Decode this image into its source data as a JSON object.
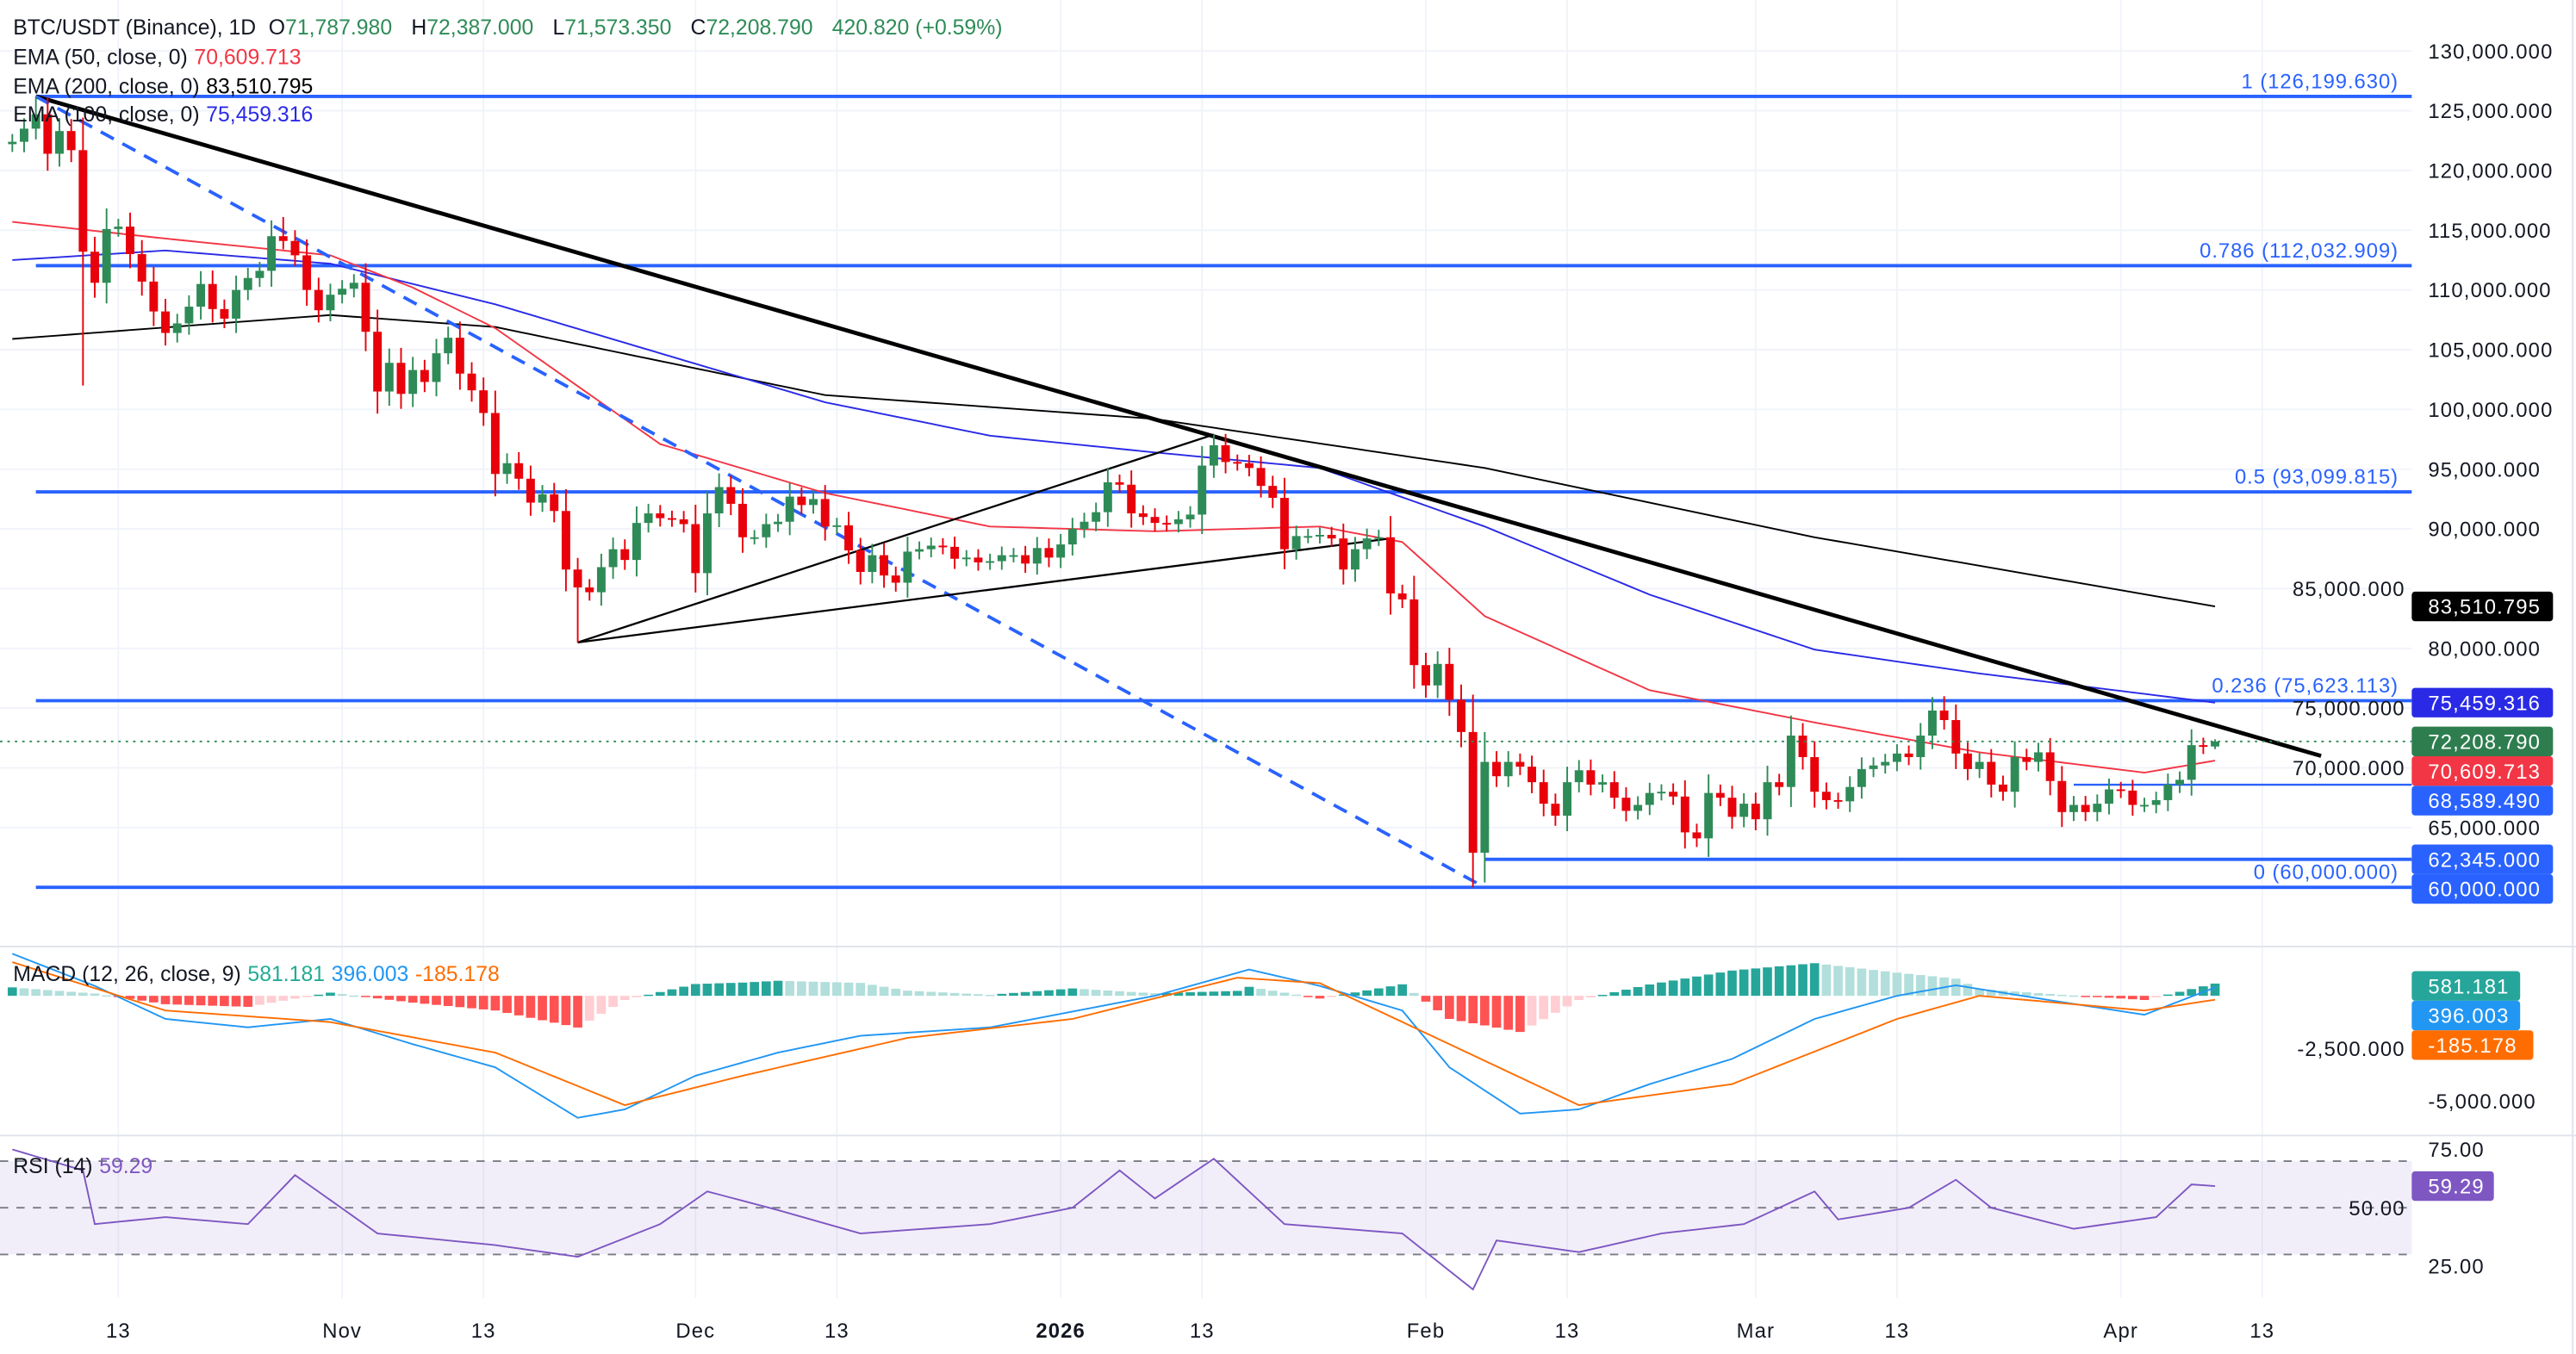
{
  "legend": {
    "symbol": "BTC/USDT (Binance), 1D",
    "open_label": "O",
    "open": "71,787.980",
    "high_label": "H",
    "high": "72,387.000",
    "low_label": "L",
    "low": "71,573.350",
    "close_label": "C",
    "close": "72,208.790",
    "change": "420.820 (+0.59%)",
    "ema50_label": "EMA (50, close, 0)",
    "ema50_value": "70,609.713",
    "ema200_label": "EMA (200, close, 0)",
    "ema200_value": "83,510.795",
    "ema100_label": "EMA (100, close, 0)",
    "ema100_value": "75,459.316",
    "macd_label": "MACD (12, 26, close, 9)",
    "macd_hist": "581.181",
    "macd_value": "396.003",
    "macd_signal": "-185.178",
    "rsi_label": "RSI (14)",
    "rsi_value": "59.29"
  },
  "colors": {
    "up": "#2e8b57",
    "down": "#e8000b",
    "ema50": "#f23645",
    "ema100": "#2a2ae6",
    "ema200": "#000000",
    "fib": "#2962ff",
    "macd": "#2196f3",
    "signal": "#ff6d00",
    "hist_up": "#26a69a",
    "hist_up_light": "#b2dfdb",
    "hist_down": "#ff5252",
    "hist_down_light": "#ffcdd2",
    "rsi": "#7e57c2"
  },
  "chart_data": {
    "type": "candlestick",
    "start_date": "2025-10-04",
    "first_open": 122200,
    "last_open": 71787.98,
    "last_high": 72387.0,
    "last_low": 71573.35,
    "closes": [
      122400,
      123500,
      124700,
      121400,
      123300,
      121700,
      113200,
      110600,
      115100,
      115300,
      113000,
      110700,
      108200,
      106400,
      107200,
      108600,
      110500,
      108400,
      107600,
      110000,
      111000,
      111600,
      114500,
      114100,
      112900,
      110000,
      108300,
      109600,
      110100,
      110600,
      106500,
      101500,
      103900,
      101300,
      103300,
      102300,
      104700,
      106000,
      103000,
      101600,
      99700,
      94600,
      95500,
      94200,
      92200,
      92900,
      91500,
      86600,
      85100,
      84700,
      86800,
      88300,
      87400,
      90500,
      91300,
      90900,
      90800,
      90400,
      86300,
      91300,
      93500,
      92100,
      89300,
      89300,
      90400,
      90600,
      92700,
      92000,
      92500,
      90200,
      90300,
      88200,
      86400,
      87800,
      86100,
      85500,
      88100,
      88300,
      88600,
      88500,
      87500,
      87600,
      87200,
      87300,
      87800,
      87800,
      87100,
      88400,
      87600,
      88700,
      90000,
      90600,
      91400,
      93900,
      93700,
      91300,
      91000,
      90500,
      90400,
      90800,
      91200,
      95300,
      97000,
      95600,
      95500,
      95100,
      93600,
      92600,
      88300,
      89400,
      89400,
      89500,
      89200,
      86600,
      88300,
      89200,
      89300,
      84600,
      84100,
      78600,
      76900,
      78700,
      75700,
      73000,
      62900,
      70500,
      69300,
      70500,
      70100,
      68800,
      67000,
      66000,
      68800,
      69800,
      68600,
      68800,
      67500,
      66400,
      66900,
      67900,
      68000,
      67600,
      64600,
      64100,
      67900,
      67500,
      65900,
      67000,
      65700,
      68800,
      68400,
      72700,
      70900,
      68000,
      67300,
      67200,
      68400,
      69900,
      70200,
      70500,
      71200,
      70900,
      72700,
      74800,
      74000,
      71200,
      69900,
      70500,
      68600,
      68000,
      70900,
      70500,
      71300,
      68900,
      66300,
      66900,
      66300,
      67000,
      68200,
      68100,
      66900,
      66900,
      67300,
      68600,
      69000,
      71900,
      71788,
      72208.79
    ],
    "wick_overrides": [
      {
        "date": "2025-10-06",
        "high": 126199.63
      },
      {
        "date": "2025-10-10",
        "low": 102000
      },
      {
        "date": "2025-10-27",
        "high": 116100
      },
      {
        "date": "2025-11-21",
        "low": 80500
      },
      {
        "date": "2026-01-14",
        "high": 97900
      },
      {
        "date": "2026-02-05",
        "low": 60000
      },
      {
        "date": "2026-03-17",
        "high": 76000
      }
    ],
    "ema50": [
      [
        "2025-10-04",
        115700
      ],
      [
        "2025-10-17",
        114300
      ],
      [
        "2025-10-31",
        112900
      ],
      [
        "2025-11-07",
        110200
      ],
      [
        "2025-11-14",
        106800
      ],
      [
        "2025-11-28",
        97100
      ],
      [
        "2025-12-12",
        93000
      ],
      [
        "2025-12-26",
        90200
      ],
      [
        "2026-01-09",
        89800
      ],
      [
        "2026-01-23",
        90200
      ],
      [
        "2026-01-30",
        88900
      ],
      [
        "2026-02-06",
        82700
      ],
      [
        "2026-02-20",
        76500
      ],
      [
        "2026-03-06",
        73800
      ],
      [
        "2026-03-20",
        71300
      ],
      [
        "2026-04-03",
        69600
      ],
      [
        "2026-04-09",
        70609.713
      ]
    ],
    "ema100": [
      [
        "2025-10-04",
        112500
      ],
      [
        "2025-10-17",
        113300
      ],
      [
        "2025-10-31",
        112200
      ],
      [
        "2025-11-14",
        108800
      ],
      [
        "2025-11-28",
        104700
      ],
      [
        "2025-12-12",
        100600
      ],
      [
        "2025-12-26",
        97800
      ],
      [
        "2026-01-09",
        96400
      ],
      [
        "2026-01-23",
        95100
      ],
      [
        "2026-02-06",
        90200
      ],
      [
        "2026-02-20",
        84500
      ],
      [
        "2026-03-06",
        79900
      ],
      [
        "2026-03-20",
        77900
      ],
      [
        "2026-04-09",
        75459.316
      ]
    ],
    "ema200": [
      [
        "2025-10-04",
        105900
      ],
      [
        "2025-10-31",
        107900
      ],
      [
        "2025-11-14",
        106900
      ],
      [
        "2025-12-12",
        101200
      ],
      [
        "2026-01-09",
        99200
      ],
      [
        "2026-02-06",
        95100
      ],
      [
        "2026-03-06",
        89300
      ],
      [
        "2026-04-09",
        83510.795
      ]
    ],
    "y_ticks": [
      130000,
      125000,
      120000,
      115000,
      110000,
      105000,
      100000,
      95000,
      90000,
      85000,
      80000,
      75000,
      70000,
      65000
    ],
    "y_tick_labels": [
      "130,000.000",
      "125,000.000",
      "120,000.000",
      "115,000.000",
      "110,000.000",
      "105,000.000",
      "100,000.000",
      "95,000.000",
      "90,000.000",
      "85,000.000",
      "80,000.000",
      "75,000.000",
      "70,000.000",
      "65,000.000"
    ],
    "x_ticks": [
      {
        "date": "2025-10-13",
        "label": "13"
      },
      {
        "date": "2025-11-01",
        "label": "Nov"
      },
      {
        "date": "2025-11-13",
        "label": "13"
      },
      {
        "date": "2025-12-01",
        "label": "Dec"
      },
      {
        "date": "2025-12-13",
        "label": "13"
      },
      {
        "date": "2026-01-01",
        "label": "2026",
        "bold": true
      },
      {
        "date": "2026-01-13",
        "label": "13"
      },
      {
        "date": "2026-02-01",
        "label": "Feb"
      },
      {
        "date": "2026-02-13",
        "label": "13"
      },
      {
        "date": "2026-03-01",
        "label": "Mar"
      },
      {
        "date": "2026-03-13",
        "label": "13"
      },
      {
        "date": "2026-04-01",
        "label": "Apr"
      },
      {
        "date": "2026-04-13",
        "label": "13"
      }
    ],
    "fib_levels": [
      {
        "ratio": "1",
        "price": 126199.63,
        "label": "1 (126,199.630)"
      },
      {
        "ratio": "0.786",
        "price": 112032.909,
        "label": "0.786 (112,032.909)"
      },
      {
        "ratio": "0.5",
        "price": 93099.815,
        "label": "0.5 (93,099.815)"
      },
      {
        "ratio": "0.236",
        "price": 75623.113,
        "label": "0.236 (75,623.113)"
      },
      {
        "ratio": "0",
        "price": 60000,
        "label": "0 (60,000.000)"
      }
    ],
    "fib_start_date": "2025-10-06",
    "horizontal_lines": [
      {
        "price": 62345,
        "from": "2026-02-06",
        "label": "62,345.000"
      },
      {
        "price": 68589.49,
        "from": "2026-03-28",
        "label": "68,589.490"
      }
    ],
    "trend_lines": [
      {
        "name": "downtrend",
        "from": [
          "2025-10-06",
          126199.63
        ],
        "to": [
          "2026-04-18",
          71000
        ],
        "style": "solid-thick"
      },
      {
        "name": "fib-diagonal",
        "from": [
          "2025-10-06",
          126199.63
        ],
        "to": [
          "2026-02-06",
          60000
        ],
        "style": "dashed"
      },
      {
        "name": "wedge-upper",
        "from": [
          "2025-11-21",
          80500
        ],
        "to": [
          "2026-01-14",
          97900
        ],
        "style": "thin"
      },
      {
        "name": "wedge-lower",
        "from": [
          "2025-11-21",
          80500
        ],
        "to": [
          "2026-01-29",
          89200
        ],
        "style": "thin"
      }
    ],
    "price_tags": [
      {
        "label": "83,510.795",
        "price": 83510.795,
        "color": "#000000"
      },
      {
        "label": "75,459.316",
        "price": 75459.316,
        "color": "#2a2ae6"
      },
      {
        "label": "72,208.790",
        "price": 72208.79,
        "color": "#2e7d4f"
      },
      {
        "label": "70,609.713",
        "price": 70609.713,
        "color": "#f23645"
      },
      {
        "label": "68,589.490",
        "price": 68589.49,
        "color": "#2962ff"
      },
      {
        "label": "62,345.000",
        "price": 62345,
        "color": "#2962ff"
      },
      {
        "label": "60,000.000",
        "price": 60000,
        "color": "#2962ff"
      }
    ],
    "macd": {
      "ticks": [
        {
          "value": -2500,
          "label": "-2,500.000"
        },
        {
          "value": -5000,
          "label": "-5,000.000"
        }
      ],
      "macd_line": [
        [
          "2025-10-04",
          2000
        ],
        [
          "2025-10-11",
          470
        ],
        [
          "2025-10-17",
          -1100
        ],
        [
          "2025-10-24",
          -1500
        ],
        [
          "2025-10-31",
          -1100
        ],
        [
          "2025-11-07",
          -2300
        ],
        [
          "2025-11-14",
          -3400
        ],
        [
          "2025-11-21",
          -5800
        ],
        [
          "2025-11-25",
          -5400
        ],
        [
          "2025-12-01",
          -3800
        ],
        [
          "2025-12-08",
          -2700
        ],
        [
          "2025-12-15",
          -1900
        ],
        [
          "2025-12-26",
          -1500
        ],
        [
          "2026-01-09",
          0
        ],
        [
          "2026-01-17",
          1250
        ],
        [
          "2026-01-23",
          470
        ],
        [
          "2026-01-30",
          -700
        ],
        [
          "2026-02-03",
          -3400
        ],
        [
          "2026-02-09",
          -5600
        ],
        [
          "2026-02-14",
          -5400
        ],
        [
          "2026-02-20",
          -4200
        ],
        [
          "2026-02-27",
          -3000
        ],
        [
          "2026-03-06",
          -1100
        ],
        [
          "2026-03-13",
          0
        ],
        [
          "2026-03-18",
          500
        ],
        [
          "2026-03-27",
          -300
        ],
        [
          "2026-04-03",
          -900
        ],
        [
          "2026-04-09",
          396.003
        ]
      ],
      "signal_line": [
        [
          "2025-10-04",
          1600
        ],
        [
          "2025-10-17",
          -700
        ],
        [
          "2025-10-31",
          -1250
        ],
        [
          "2025-11-14",
          -2700
        ],
        [
          "2025-11-25",
          -5200
        ],
        [
          "2025-12-05",
          -3800
        ],
        [
          "2025-12-19",
          -2000
        ],
        [
          "2026-01-02",
          -1100
        ],
        [
          "2026-01-16",
          860
        ],
        [
          "2026-01-23",
          600
        ],
        [
          "2026-02-03",
          -2300
        ],
        [
          "2026-02-14",
          -5200
        ],
        [
          "2026-02-27",
          -4200
        ],
        [
          "2026-03-13",
          -1100
        ],
        [
          "2026-03-20",
          0
        ],
        [
          "2026-04-03",
          -700
        ],
        [
          "2026-04-09",
          -185.178
        ]
      ]
    },
    "rsi": {
      "ticks": [
        75,
        50,
        25
      ],
      "tick_labels": [
        "75.00",
        "50.00",
        "25.00"
      ],
      "upper_band": 70,
      "lower_band": 30,
      "values": [
        [
          "2025-10-04",
          75
        ],
        [
          "2025-10-10",
          66
        ],
        [
          "2025-10-11",
          43
        ],
        [
          "2025-10-17",
          46
        ],
        [
          "2025-10-24",
          43
        ],
        [
          "2025-10-28",
          64
        ],
        [
          "2025-11-04",
          39
        ],
        [
          "2025-11-14",
          34
        ],
        [
          "2025-11-21",
          29
        ],
        [
          "2025-11-28",
          43
        ],
        [
          "2025-12-02",
          57
        ],
        [
          "2025-12-08",
          49
        ],
        [
          "2025-12-15",
          39
        ],
        [
          "2025-12-26",
          43
        ],
        [
          "2026-01-02",
          50
        ],
        [
          "2026-01-06",
          66
        ],
        [
          "2026-01-09",
          54
        ],
        [
          "2026-01-14",
          71
        ],
        [
          "2026-01-20",
          43
        ],
        [
          "2026-01-30",
          39
        ],
        [
          "2026-02-05",
          15
        ],
        [
          "2026-02-07",
          36
        ],
        [
          "2026-02-14",
          31
        ],
        [
          "2026-02-21",
          39
        ],
        [
          "2026-02-28",
          43
        ],
        [
          "2026-03-06",
          57
        ],
        [
          "2026-03-08",
          45
        ],
        [
          "2026-03-14",
          50
        ],
        [
          "2026-03-18",
          62
        ],
        [
          "2026-03-21",
          50
        ],
        [
          "2026-03-28",
          41
        ],
        [
          "2026-04-04",
          46
        ],
        [
          "2026-04-07",
          60
        ],
        [
          "2026-04-09",
          59.29
        ]
      ]
    }
  }
}
